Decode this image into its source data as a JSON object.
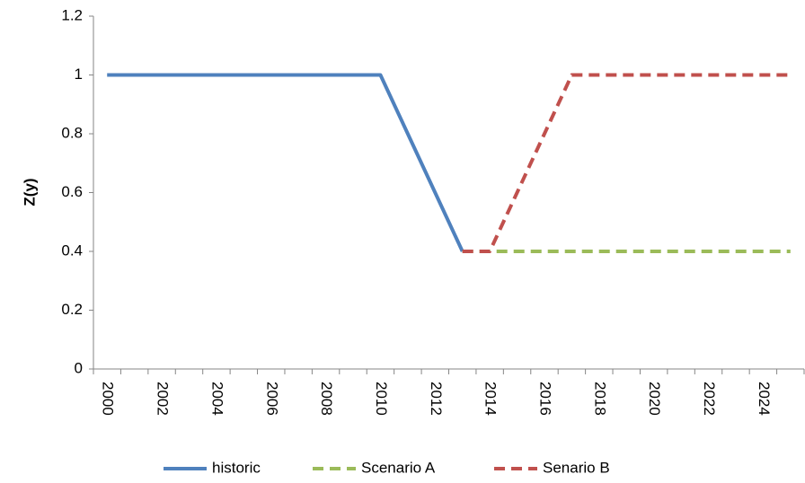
{
  "chart_data": {
    "type": "line",
    "y_label": "Z(y)",
    "x": [
      2000,
      2001,
      2002,
      2003,
      2004,
      2005,
      2006,
      2007,
      2008,
      2009,
      2010,
      2011,
      2012,
      2013,
      2014,
      2015,
      2016,
      2017,
      2018,
      2019,
      2020,
      2021,
      2022,
      2023,
      2024,
      2025
    ],
    "xlim": [
      1999.5,
      2025.5
    ],
    "xticks": [
      2000,
      2002,
      2004,
      2006,
      2008,
      2010,
      2012,
      2014,
      2016,
      2018,
      2020,
      2022,
      2024
    ],
    "ylim": [
      0,
      1.2
    ],
    "yticks": [
      0,
      0.2,
      0.4,
      0.6,
      0.8,
      1,
      1.2
    ],
    "grid": false,
    "legend": "bottom",
    "series": [
      {
        "name": "historic",
        "color": "#4f81bd",
        "dash": false,
        "values": [
          1,
          1,
          1,
          1,
          1,
          1,
          1,
          1,
          1,
          1,
          1,
          0.8,
          0.6,
          0.4,
          null,
          null,
          null,
          null,
          null,
          null,
          null,
          null,
          null,
          null,
          null,
          null
        ]
      },
      {
        "name": "Scenario A",
        "color": "#9bbb59",
        "dash": true,
        "values": [
          null,
          null,
          null,
          null,
          null,
          null,
          null,
          null,
          null,
          null,
          null,
          null,
          null,
          0.4,
          0.4,
          0.4,
          0.4,
          0.4,
          0.4,
          0.4,
          0.4,
          0.4,
          0.4,
          0.4,
          0.4,
          0.4
        ]
      },
      {
        "name": "Senario B",
        "color": "#c0504d",
        "dash": true,
        "values": [
          null,
          null,
          null,
          null,
          null,
          null,
          null,
          null,
          null,
          null,
          null,
          null,
          null,
          0.4,
          0.4,
          0.6,
          0.8,
          1,
          1,
          1,
          1,
          1,
          1,
          1,
          1,
          1
        ]
      }
    ]
  }
}
